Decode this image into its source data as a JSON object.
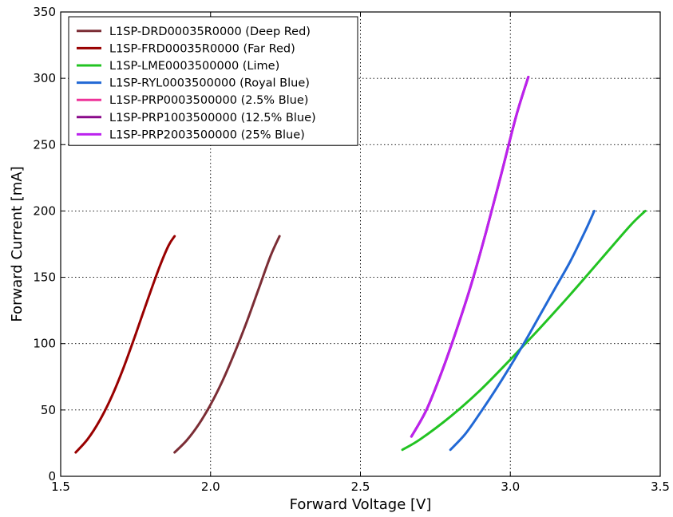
{
  "chart_data": {
    "type": "line",
    "title": "",
    "xlabel": "Forward Voltage [V]",
    "ylabel": "Forward Current [mA]",
    "xlim": [
      1.5,
      3.5
    ],
    "ylim": [
      0,
      350
    ],
    "xticks": [
      "1.5",
      "2.0",
      "2.5",
      "3.0",
      "3.5"
    ],
    "yticks": [
      "0",
      "50",
      "100",
      "150",
      "200",
      "250",
      "300",
      "350"
    ],
    "xtick_values": [
      1.5,
      2.0,
      2.5,
      3.0,
      3.5
    ],
    "ytick_values": [
      0,
      50,
      100,
      150,
      200,
      250,
      300,
      350
    ],
    "grid": true,
    "legend_position": "top-left",
    "series": [
      {
        "name": "L1SP-DRD00035R0000 (Deep Red)",
        "color": "#7b2d35",
        "x": [
          1.88,
          1.92,
          1.96,
          2.0,
          2.04,
          2.08,
          2.12,
          2.16,
          2.2,
          2.23
        ],
        "y": [
          18,
          27,
          39,
          54,
          72,
          93,
          116,
          141,
          166,
          181
        ]
      },
      {
        "name": "L1SP-FRD00035R0000 (Far Red)",
        "color": "#990000",
        "x": [
          1.55,
          1.59,
          1.63,
          1.67,
          1.71,
          1.75,
          1.79,
          1.83,
          1.86,
          1.88
        ],
        "y": [
          18,
          28,
          42,
          60,
          82,
          107,
          133,
          158,
          174,
          181
        ]
      },
      {
        "name": "L1SP-LME0003500000 (Lime)",
        "color": "#22c322",
        "x": [
          2.64,
          2.7,
          2.8,
          2.9,
          3.0,
          3.05,
          3.1,
          3.2,
          3.3,
          3.4,
          3.45
        ],
        "y": [
          20,
          28,
          45,
          65,
          88,
          100,
          112,
          137,
          163,
          189,
          200
        ]
      },
      {
        "name": "L1SP-RYL0003500000 (Royal Blue)",
        "color": "#2168d5",
        "x": [
          2.8,
          2.85,
          2.9,
          2.95,
          3.0,
          3.05,
          3.1,
          3.15,
          3.2,
          3.25,
          3.28
        ],
        "y": [
          20,
          32,
          48,
          65,
          83,
          102,
          122,
          142,
          162,
          185,
          200
        ]
      },
      {
        "name": "L1SP-PRP0003500000 (2.5% Blue)",
        "color": "#ee3399",
        "x": [
          2.67,
          2.72,
          2.77,
          2.82,
          2.87,
          2.92,
          2.97,
          3.02,
          3.06
        ],
        "y": [
          30,
          50,
          78,
          110,
          145,
          185,
          228,
          272,
          301
        ]
      },
      {
        "name": "L1SP-PRP1003500000 (12.5% Blue)",
        "color": "#8a0a8a",
        "x": [
          2.67,
          2.72,
          2.77,
          2.82,
          2.87,
          2.92,
          2.97,
          3.02,
          3.06
        ],
        "y": [
          30,
          50,
          78,
          110,
          145,
          185,
          228,
          272,
          301
        ]
      },
      {
        "name": "L1SP-PRP2003500000 (25% Blue)",
        "color": "#bb22ee",
        "x": [
          2.67,
          2.72,
          2.77,
          2.82,
          2.87,
          2.92,
          2.97,
          3.02,
          3.06
        ],
        "y": [
          30,
          50,
          78,
          110,
          145,
          185,
          228,
          272,
          301
        ]
      }
    ]
  }
}
